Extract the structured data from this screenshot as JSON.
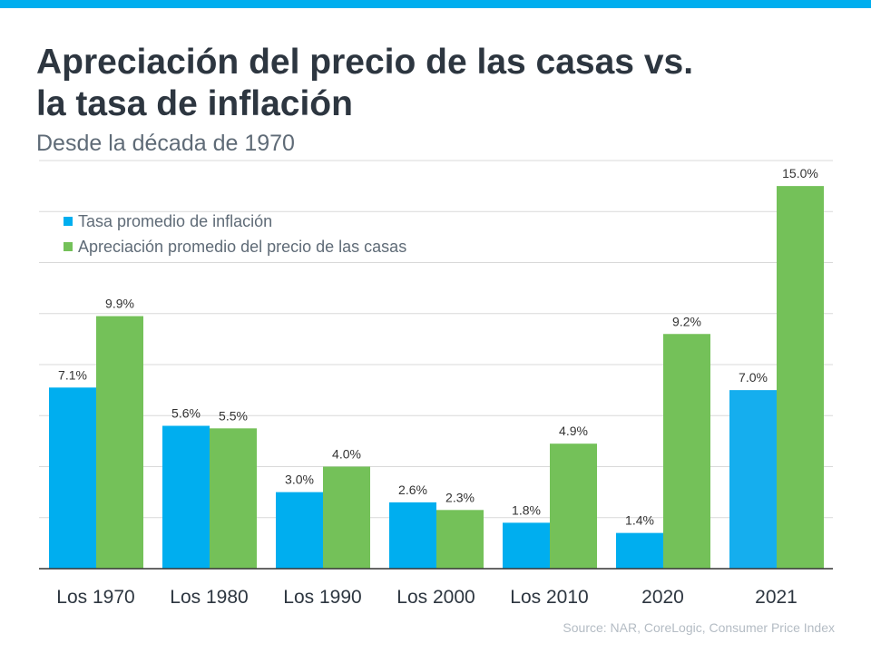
{
  "header": {
    "title_line1": "Apreciación del precio de las casas vs.",
    "title_line2": "la tasa de inflación",
    "subtitle": "Desde la década de 1970"
  },
  "colors": {
    "accent": "#00AEEF",
    "inflation": "#00AEEF",
    "inflation_2021": "#15AEEE",
    "home": "#74C159",
    "grid": "#d9d9d9",
    "text": "#2d3640"
  },
  "chart_data": {
    "type": "bar",
    "categories": [
      "Los 1970",
      "Los 1980",
      "Los 1990",
      "Los 2000",
      "Los 2010",
      "2020",
      "2021"
    ],
    "series": [
      {
        "name": "Tasa promedio de inflación",
        "values": [
          7.1,
          5.6,
          3.0,
          2.6,
          1.8,
          1.4,
          7.0
        ],
        "labels": [
          "7.1%",
          "5.6%",
          "3.0%",
          "2.6%",
          "1.8%",
          "1.4%",
          "7.0%"
        ]
      },
      {
        "name": "Apreciación promedio del precio de las casas",
        "values": [
          9.9,
          5.5,
          4.0,
          2.3,
          4.9,
          9.2,
          15.0
        ],
        "labels": [
          "9.9%",
          "5.5%",
          "4.0%",
          "2.3%",
          "4.9%",
          "9.2%",
          "15.0%"
        ]
      }
    ],
    "ylim": [
      0,
      16
    ],
    "grid": true,
    "legend": "top-left"
  },
  "footer": {
    "source": "Source: NAR, CoreLogic, Consumer Price Index"
  }
}
